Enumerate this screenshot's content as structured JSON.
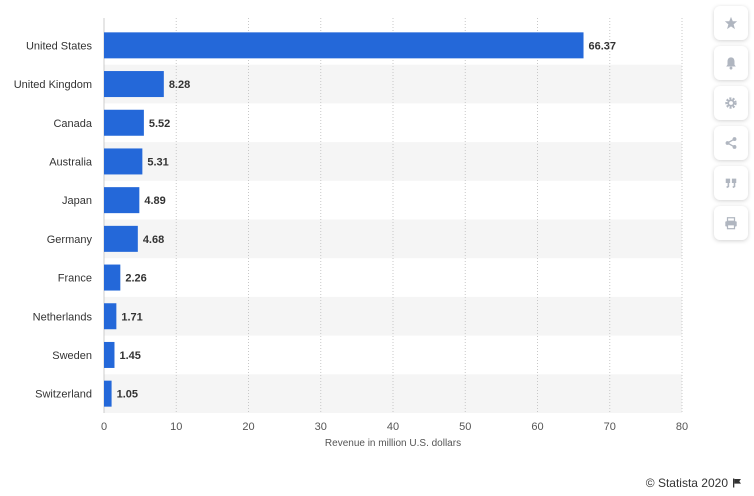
{
  "chart_data": {
    "type": "bar",
    "orientation": "horizontal",
    "categories": [
      "United States",
      "United Kingdom",
      "Canada",
      "Australia",
      "Japan",
      "Germany",
      "France",
      "Netherlands",
      "Sweden",
      "Switzerland"
    ],
    "values": [
      66.37,
      8.28,
      5.52,
      5.31,
      4.89,
      4.68,
      2.26,
      1.71,
      1.45,
      1.05
    ],
    "value_labels": [
      "66.37",
      "8.28",
      "5.52",
      "5.31",
      "4.89",
      "4.68",
      "2.26",
      "1.71",
      "1.45",
      "1.05"
    ],
    "xlabel": "Revenue in million U.S. dollars",
    "xlim": [
      0,
      80
    ],
    "xticks": [
      0,
      10,
      20,
      30,
      40,
      50,
      60,
      70,
      80
    ],
    "grid": true,
    "bar_color": "#2468d9",
    "stripe_color": "#f5f5f5"
  },
  "toolbar": {
    "buttons": [
      "star-icon",
      "bell-icon",
      "gear-icon",
      "share-icon",
      "quote-icon",
      "print-icon"
    ],
    "icon_color": "#b0b6c0"
  },
  "credit": {
    "text": "© Statista 2020"
  }
}
